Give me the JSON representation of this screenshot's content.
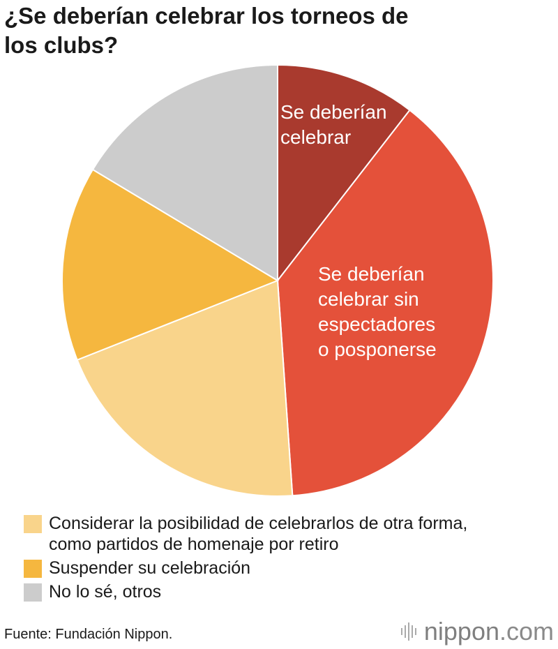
{
  "chart_data": {
    "type": "pie",
    "title": "¿Se deberían celebrar los torneos de los clubs?",
    "slices": [
      {
        "label": "Se deberían celebrar",
        "value": 10.5,
        "color": "#a93a2e",
        "legend": false
      },
      {
        "label": "Se deberían celebrar sin espectadores o posponerse",
        "value": 38.4,
        "color": "#e4513a",
        "legend": false
      },
      {
        "label": "Considerar la posibilidad de celebrarlos de otra forma, como partidos de homenaje por retiro",
        "value": 20.1,
        "color": "#f9d48b",
        "legend": true
      },
      {
        "label": "Suspender su celebración",
        "value": 14.6,
        "color": "#f5b73f",
        "legend": true
      },
      {
        "label": "No lo sé, otros",
        "value": 16.4,
        "color": "#cccccc",
        "legend": true
      }
    ],
    "slice_label_lines": [
      [
        "Se deberían",
        "celebrar"
      ],
      [
        "Se deberían",
        "celebrar sin",
        "espectadores",
        "o posponerse"
      ]
    ],
    "legend_lines": [
      [
        "Considerar la posibilidad de celebrarlos de otra forma,",
        "como partidos de homenaje por retiro"
      ],
      [
        "Suspender su celebración"
      ],
      [
        "No lo sé, otros"
      ]
    ]
  },
  "title_lines": [
    "¿Se deberían celebrar los torneos de",
    "los clubs?"
  ],
  "source": "Fuente: Fundación Nippon.",
  "logo": {
    "name": "nippon",
    "suffix": ".com",
    "icon": "nippon-sound-bars-icon"
  }
}
